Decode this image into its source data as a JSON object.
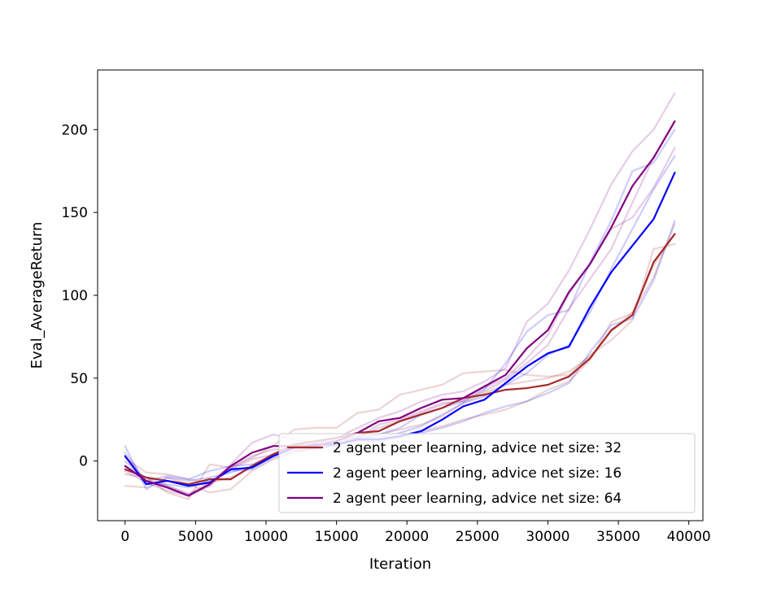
{
  "chart_data": {
    "type": "line",
    "title": "",
    "xlabel": "Iteration",
    "ylabel": "Eval_AverageReturn",
    "xlim": [
      -1950,
      41000
    ],
    "ylim": [
      -36,
      236
    ],
    "xticks": [
      0,
      5000,
      10000,
      15000,
      20000,
      25000,
      30000,
      35000,
      40000
    ],
    "yticks": [
      0,
      50,
      100,
      150,
      200
    ],
    "grid": false,
    "legend_position": "lower-right",
    "x": [
      0,
      1500,
      3000,
      4500,
      6000,
      7500,
      9000,
      10500,
      12000,
      13500,
      15000,
      16500,
      18000,
      19500,
      21000,
      22500,
      24000,
      25500,
      27000,
      28500,
      30000,
      31500,
      33000,
      34500,
      36000,
      37500,
      39000
    ],
    "series": [
      {
        "name": "2 agent peer learning, advice net size: 32",
        "color": "#a52a2a",
        "values": [
          -5,
          -10,
          -12,
          -14,
          -11,
          -11,
          -3,
          4,
          10,
          12,
          14,
          17,
          18,
          24,
          28,
          32,
          38,
          40,
          43,
          44,
          46,
          51,
          62,
          79,
          88,
          120,
          137
        ],
        "runs": [
          [
            -3,
            -10,
            -19,
            -23,
            -2,
            -4,
            2,
            9,
            19,
            20,
            20,
            29,
            31,
            40,
            43,
            46,
            53,
            54,
            55,
            52,
            51,
            52,
            64,
            73,
            85,
            128,
            131
          ],
          [
            -15,
            -16,
            -10,
            -14,
            -19,
            -17,
            -6,
            1,
            5,
            8,
            10,
            13,
            12,
            15,
            18,
            21,
            25,
            28,
            31,
            36,
            43,
            48,
            61,
            84,
            89,
            111,
            143
          ],
          [
            2,
            -7,
            -8,
            -11,
            -13,
            -10,
            -4,
            3,
            8,
            10,
            12,
            15,
            16,
            19,
            22,
            27,
            35,
            41,
            46,
            48,
            50,
            54,
            63,
            78,
            90,
            118,
            137
          ]
        ]
      },
      {
        "name": "2 agent peer learning, advice net size: 16",
        "color": "#0000ff",
        "values": [
          3,
          -14,
          -12,
          -15,
          -13,
          -5,
          -4,
          3,
          8,
          10,
          10,
          13,
          13,
          15,
          18,
          25,
          33,
          37,
          47,
          57,
          65,
          69,
          93,
          114,
          130,
          146,
          174
        ],
        "runs": [
          [
            9,
            -17,
            -10,
            -12,
            -10,
            -7,
            -3,
            4,
            9,
            11,
            13,
            14,
            14,
            17,
            21,
            28,
            35,
            39,
            46,
            53,
            64,
            70,
            90,
            116,
            140,
            164,
            184
          ],
          [
            0,
            -12,
            -9,
            -11,
            -6,
            -3,
            -2,
            3,
            9,
            12,
            11,
            13,
            16,
            20,
            28,
            32,
            36,
            43,
            59,
            78,
            88,
            91,
            120,
            145,
            175,
            180,
            200
          ],
          [
            3,
            -13,
            -14,
            -16,
            -12,
            -6,
            -5,
            2,
            6,
            8,
            9,
            12,
            12,
            14,
            17,
            20,
            24,
            29,
            33,
            36,
            41,
            47,
            66,
            82,
            86,
            109,
            145
          ]
        ]
      },
      {
        "name": "2 agent peer learning, advice net size: 64",
        "color": "#800080",
        "values": [
          -3,
          -12,
          -16,
          -21,
          -14,
          -3,
          5,
          9,
          9,
          9,
          12,
          17,
          24,
          26,
          32,
          37,
          38,
          45,
          52,
          68,
          79,
          102,
          119,
          141,
          166,
          183,
          205
        ],
        "runs": [
          [
            5,
            -12,
            -15,
            -20,
            -15,
            -2,
            11,
            16,
            13,
            11,
            14,
            20,
            26,
            30,
            36,
            40,
            42,
            48,
            56,
            84,
            95,
            115,
            140,
            167,
            187,
            200,
            222
          ],
          [
            -6,
            -13,
            -18,
            -21,
            -15,
            -4,
            3,
            7,
            7,
            8,
            11,
            14,
            20,
            24,
            29,
            34,
            37,
            44,
            50,
            62,
            76,
            101,
            119,
            140,
            147,
            165,
            189
          ],
          [
            -8,
            -10,
            -15,
            -20,
            -13,
            -5,
            1,
            4,
            6,
            7,
            10,
            14,
            22,
            25,
            30,
            35,
            36,
            42,
            49,
            59,
            70,
            92,
            110,
            128,
            156,
            183,
            205
          ]
        ]
      }
    ]
  }
}
